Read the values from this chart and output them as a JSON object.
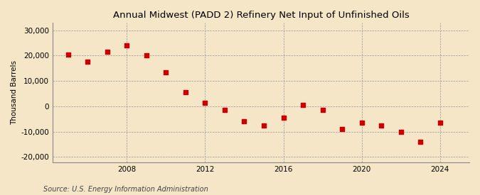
{
  "title": "Annual Midwest (PADD 2) Refinery Net Input of Unfinished Oils",
  "ylabel": "Thousand Barrels",
  "source": "Source: U.S. Energy Information Administration",
  "background_color": "#f5e6c8",
  "years": [
    2005,
    2006,
    2007,
    2008,
    2009,
    2010,
    2011,
    2012,
    2013,
    2014,
    2015,
    2016,
    2017,
    2018,
    2019,
    2020,
    2021,
    2022,
    2023,
    2024
  ],
  "values": [
    20500,
    17500,
    21500,
    24000,
    20000,
    13500,
    5500,
    1500,
    -1500,
    -6000,
    -7500,
    -4500,
    500,
    -1500,
    -9000,
    -6500,
    -7500,
    -10000,
    -14000,
    -6500
  ],
  "marker_color": "#cc0000",
  "marker_size": 5,
  "ylim": [
    -22000,
    33000
  ],
  "yticks": [
    -20000,
    -10000,
    0,
    10000,
    20000,
    30000
  ],
  "xticks": [
    2008,
    2012,
    2016,
    2020,
    2024
  ],
  "grid_color": "#999999",
  "title_fontsize": 9.5,
  "label_fontsize": 7.5,
  "tick_fontsize": 7.5,
  "source_fontsize": 7
}
